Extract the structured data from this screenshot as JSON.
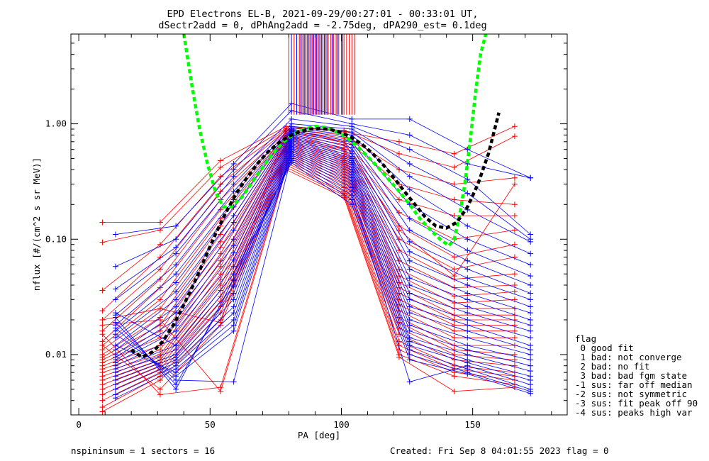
{
  "chart_data": {
    "type": "line",
    "title": "EPD Electrons EL-B, 2021-09-29/00:27:01 - 00:33:01 UT,",
    "subtitle": "dSectr2add = 0, dPhAng2add = -2.75deg, dPA290_est=   0.1deg",
    "xlabel": "PA [deg]",
    "ylabel": "nflux [#/(cm^2 s sr MeV)]",
    "xlim": [
      -3,
      186
    ],
    "ylim": [
      0.003,
      6.0
    ],
    "yscale": "log",
    "xticks": [
      0,
      50,
      100,
      150
    ],
    "yticks": [
      {
        "value": 0.01,
        "label": "0.01"
      },
      {
        "value": 0.1,
        "label": "0.10"
      },
      {
        "value": 1.0,
        "label": "1.00"
      }
    ],
    "grid": false,
    "legend_title": "flag",
    "legend": [
      " 0 good fit",
      " 1 bad: not converge",
      " 2 bad: no fit",
      " 3 bad: bad fgm state",
      "-1 sus: far off median",
      "-2 sus: not symmetric",
      "-3 sus: fit peak off 90",
      "-4 sus: peaks high var"
    ],
    "pa_sectors_red": [
      9,
      31,
      54,
      79,
      101,
      122,
      143,
      166
    ],
    "pa_sectors_blue": [
      14,
      37,
      59,
      81,
      104,
      126,
      148,
      172
    ],
    "series": [
      {
        "color": "#ff0000",
        "values": [
          0.14,
          0.14,
          0.48,
          0.95,
          0.85,
          0.7,
          0.55,
          0.95
        ]
      },
      {
        "color": "#ff0000",
        "values": [
          0.094,
          0.12,
          0.42,
          0.92,
          0.88,
          0.55,
          0.42,
          0.78
        ]
      },
      {
        "color": "#ff0000",
        "values": [
          0.036,
          0.09,
          0.35,
          0.9,
          0.8,
          0.4,
          0.3,
          0.34
        ]
      },
      {
        "color": "#ff0000",
        "values": [
          0.024,
          0.07,
          0.3,
          0.88,
          0.75,
          0.3,
          0.22,
          0.2
        ]
      },
      {
        "color": "#ff0000",
        "values": [
          0.02,
          0.055,
          0.26,
          0.85,
          0.7,
          0.22,
          0.16,
          0.16
        ]
      },
      {
        "color": "#ff0000",
        "values": [
          0.016,
          0.045,
          0.22,
          0.82,
          0.66,
          0.17,
          0.1,
          0.12
        ]
      },
      {
        "color": "#ff0000",
        "values": [
          0.013,
          0.038,
          0.18,
          0.8,
          0.62,
          0.13,
          0.07,
          0.09
        ]
      },
      {
        "color": "#ff0000",
        "values": [
          0.012,
          0.03,
          0.15,
          0.78,
          0.6,
          0.1,
          0.055,
          0.07
        ]
      },
      {
        "color": "#ff0000",
        "values": [
          0.011,
          0.025,
          0.13,
          0.76,
          0.58,
          0.08,
          0.045,
          0.05
        ]
      },
      {
        "color": "#ff0000",
        "values": [
          0.01,
          0.021,
          0.11,
          0.74,
          0.55,
          0.065,
          0.038,
          0.04
        ]
      },
      {
        "color": "#ff0000",
        "values": [
          0.0095,
          0.018,
          0.095,
          0.72,
          0.52,
          0.055,
          0.032,
          0.035
        ]
      },
      {
        "color": "#ff0000",
        "values": [
          0.009,
          0.016,
          0.085,
          0.7,
          0.5,
          0.048,
          0.028,
          0.03
        ]
      },
      {
        "color": "#ff0000",
        "values": [
          0.0085,
          0.014,
          0.075,
          0.68,
          0.48,
          0.042,
          0.025,
          0.025
        ]
      },
      {
        "color": "#ff0000",
        "values": [
          0.008,
          0.012,
          0.065,
          0.66,
          0.46,
          0.038,
          0.022,
          0.022
        ]
      },
      {
        "color": "#ff0000",
        "values": [
          0.0075,
          0.011,
          0.058,
          0.64,
          0.44,
          0.034,
          0.02,
          0.02
        ]
      },
      {
        "color": "#ff0000",
        "values": [
          0.007,
          0.01,
          0.05,
          0.62,
          0.42,
          0.03,
          0.018,
          0.018
        ]
      },
      {
        "color": "#ff0000",
        "values": [
          0.0065,
          0.0095,
          0.045,
          0.6,
          0.4,
          0.027,
          0.016,
          0.016
        ]
      },
      {
        "color": "#ff0000",
        "values": [
          0.006,
          0.009,
          0.04,
          0.58,
          0.38,
          0.024,
          0.014,
          0.014
        ]
      },
      {
        "color": "#ff0000",
        "values": [
          0.0055,
          0.0085,
          0.036,
          0.56,
          0.36,
          0.021,
          0.012,
          0.012
        ]
      },
      {
        "color": "#ff0000",
        "values": [
          0.005,
          0.008,
          0.032,
          0.54,
          0.34,
          0.019,
          0.011,
          0.01
        ]
      },
      {
        "color": "#ff0000",
        "values": [
          0.0045,
          0.0075,
          0.029,
          0.52,
          0.32,
          0.017,
          0.01,
          0.009
        ]
      },
      {
        "color": "#ff0000",
        "values": [
          0.004,
          0.007,
          0.026,
          0.5,
          0.3,
          0.015,
          0.009,
          0.008
        ]
      },
      {
        "color": "#ff0000",
        "values": [
          0.0035,
          0.0065,
          0.023,
          0.48,
          0.28,
          0.013,
          0.008,
          0.007
        ]
      },
      {
        "color": "#ff0000",
        "values": [
          0.0032,
          0.006,
          0.02,
          0.46,
          0.26,
          0.012,
          0.0075,
          0.0065
        ]
      },
      {
        "color": "#ff0000",
        "values": [
          0.012,
          0.005,
          0.018,
          0.44,
          0.25,
          0.011,
          0.007,
          0.006
        ]
      },
      {
        "color": "#ff0000",
        "values": [
          0.015,
          0.0045,
          0.0052,
          0.42,
          0.24,
          0.01,
          0.0065,
          0.0055
        ]
      },
      {
        "color": "#ff0000",
        "values": [
          0.018,
          0.02,
          0.0048,
          0.4,
          0.23,
          0.0095,
          0.0048,
          0.0052
        ]
      },
      {
        "color": "#ff0000",
        "values": [
          0.02,
          0.025,
          0.019,
          0.9,
          0.7,
          0.12,
          0.048,
          0.3
        ]
      },
      {
        "color": "#0000ff",
        "values": [
          0.11,
          0.13,
          0.45,
          1.5,
          1.1,
          1.1,
          0.6,
          0.34
        ]
      },
      {
        "color": "#0000ff",
        "values": [
          0.058,
          0.1,
          0.4,
          1.3,
          1.0,
          0.8,
          0.45,
          0.34
        ]
      },
      {
        "color": "#0000ff",
        "values": [
          0.037,
          0.085,
          0.35,
          1.1,
          0.95,
          0.6,
          0.33,
          0.11
        ]
      },
      {
        "color": "#0000ff",
        "values": [
          0.03,
          0.075,
          0.3,
          1.0,
          0.9,
          0.45,
          0.25,
          0.1
        ]
      },
      {
        "color": "#0000ff",
        "values": [
          0.022,
          0.06,
          0.26,
          0.95,
          0.85,
          0.35,
          0.18,
          0.095
        ]
      },
      {
        "color": "#0000ff",
        "values": [
          0.018,
          0.05,
          0.22,
          0.92,
          0.8,
          0.27,
          0.13,
          0.075
        ]
      },
      {
        "color": "#0000ff",
        "values": [
          0.016,
          0.042,
          0.19,
          0.9,
          0.75,
          0.2,
          0.1,
          0.06
        ]
      },
      {
        "color": "#0000ff",
        "values": [
          0.014,
          0.035,
          0.16,
          0.88,
          0.7,
          0.15,
          0.08,
          0.048
        ]
      },
      {
        "color": "#0000ff",
        "values": [
          0.012,
          0.03,
          0.14,
          0.86,
          0.66,
          0.12,
          0.065,
          0.04
        ]
      },
      {
        "color": "#0000ff",
        "values": [
          0.011,
          0.026,
          0.12,
          0.84,
          0.62,
          0.095,
          0.055,
          0.034
        ]
      },
      {
        "color": "#0000ff",
        "values": [
          0.01,
          0.023,
          0.1,
          0.82,
          0.58,
          0.078,
          0.046,
          0.03
        ]
      },
      {
        "color": "#0000ff",
        "values": [
          0.0095,
          0.02,
          0.088,
          0.8,
          0.55,
          0.065,
          0.04,
          0.026
        ]
      },
      {
        "color": "#0000ff",
        "values": [
          0.009,
          0.018,
          0.076,
          0.78,
          0.52,
          0.055,
          0.034,
          0.023
        ]
      },
      {
        "color": "#0000ff",
        "values": [
          0.0085,
          0.016,
          0.066,
          0.76,
          0.5,
          0.046,
          0.03,
          0.02
        ]
      },
      {
        "color": "#0000ff",
        "values": [
          0.008,
          0.014,
          0.058,
          0.74,
          0.48,
          0.04,
          0.026,
          0.018
        ]
      },
      {
        "color": "#0000ff",
        "values": [
          0.0075,
          0.012,
          0.05,
          0.72,
          0.46,
          0.034,
          0.023,
          0.016
        ]
      },
      {
        "color": "#0000ff",
        "values": [
          0.007,
          0.011,
          0.044,
          0.7,
          0.44,
          0.03,
          0.02,
          0.014
        ]
      },
      {
        "color": "#0000ff",
        "values": [
          0.0065,
          0.01,
          0.039,
          0.68,
          0.42,
          0.026,
          0.018,
          0.012
        ]
      },
      {
        "color": "#0000ff",
        "values": [
          0.006,
          0.0095,
          0.034,
          0.66,
          0.4,
          0.023,
          0.016,
          0.011
        ]
      },
      {
        "color": "#0000ff",
        "values": [
          0.0055,
          0.009,
          0.03,
          0.64,
          0.38,
          0.02,
          0.014,
          0.01
        ]
      },
      {
        "color": "#0000ff",
        "values": [
          0.005,
          0.0085,
          0.026,
          0.62,
          0.36,
          0.018,
          0.012,
          0.009
        ]
      },
      {
        "color": "#0000ff",
        "values": [
          0.0045,
          0.008,
          0.023,
          0.6,
          0.34,
          0.016,
          0.011,
          0.008
        ]
      },
      {
        "color": "#0000ff",
        "values": [
          0.0042,
          0.0075,
          0.02,
          0.58,
          0.32,
          0.014,
          0.01,
          0.0072
        ]
      },
      {
        "color": "#0000ff",
        "values": [
          0.012,
          0.007,
          0.018,
          0.56,
          0.3,
          0.013,
          0.009,
          0.0065
        ]
      },
      {
        "color": "#0000ff",
        "values": [
          0.015,
          0.0065,
          0.016,
          0.54,
          0.28,
          0.012,
          0.0085,
          0.006
        ]
      },
      {
        "color": "#0000ff",
        "values": [
          0.017,
          0.006,
          0.0058,
          0.52,
          0.26,
          0.0058,
          0.008,
          0.0055
        ]
      },
      {
        "color": "#0000ff",
        "values": [
          0.019,
          0.0055,
          0.04,
          0.5,
          0.24,
          0.011,
          0.0075,
          0.005
        ]
      },
      {
        "color": "#0000ff",
        "values": [
          0.021,
          0.005,
          0.045,
          0.48,
          0.22,
          0.01,
          0.007,
          0.0048
        ]
      },
      {
        "color": "#0000ff",
        "values": [
          0.023,
          0.012,
          0.05,
          0.46,
          0.2,
          0.009,
          0.0068,
          0.0046
        ]
      }
    ],
    "high_bars": {
      "red_x": [
        80,
        82,
        84,
        85,
        86,
        87,
        88,
        89,
        90,
        91,
        92,
        93,
        94,
        95,
        96,
        97,
        98,
        99,
        100,
        101,
        102,
        103,
        104,
        105
      ],
      "blue_x": [
        81,
        83,
        84.5,
        85.5,
        86.5,
        87.5,
        88.5,
        89.5,
        90.5,
        91.5,
        92.5,
        93.5,
        94.5,
        96.5,
        98.5,
        100.5
      ],
      "y_from": 1.2
    },
    "green_fit": {
      "color": "#00ff00",
      "x": [
        40,
        43,
        46,
        49,
        52,
        55,
        58,
        62,
        66,
        70,
        74,
        78,
        82,
        86,
        90,
        94,
        98,
        102,
        106,
        110,
        114,
        118,
        122,
        126,
        130,
        134,
        138,
        141,
        143,
        145,
        147,
        149,
        151,
        153,
        155
      ],
      "y": [
        6.0,
        2.2,
        0.9,
        0.45,
        0.26,
        0.19,
        0.19,
        0.23,
        0.31,
        0.42,
        0.56,
        0.7,
        0.82,
        0.9,
        0.95,
        0.93,
        0.86,
        0.76,
        0.64,
        0.52,
        0.42,
        0.33,
        0.26,
        0.2,
        0.15,
        0.12,
        0.098,
        0.088,
        0.1,
        0.16,
        0.3,
        0.7,
        1.8,
        4.0,
        6.0
      ]
    },
    "black_fit": {
      "color": "#000000",
      "x": [
        20,
        24,
        28,
        32,
        36,
        40,
        44,
        48,
        52,
        56,
        60,
        64,
        68,
        72,
        76,
        80,
        84,
        88,
        92,
        96,
        100,
        104,
        108,
        112,
        116,
        120,
        124,
        128,
        132,
        136,
        140,
        144,
        148,
        152,
        156,
        160
      ],
      "y": [
        0.011,
        0.0095,
        0.0105,
        0.013,
        0.018,
        0.027,
        0.042,
        0.068,
        0.11,
        0.17,
        0.25,
        0.34,
        0.45,
        0.57,
        0.68,
        0.78,
        0.85,
        0.9,
        0.91,
        0.89,
        0.84,
        0.76,
        0.66,
        0.55,
        0.44,
        0.34,
        0.26,
        0.2,
        0.155,
        0.13,
        0.125,
        0.14,
        0.19,
        0.3,
        0.55,
        1.25
      ]
    }
  },
  "footer": {
    "left": "nspininsum =  1  sectors = 16",
    "right": "Created: Fri Sep  8 04:01:55 2023   flag = 0"
  }
}
